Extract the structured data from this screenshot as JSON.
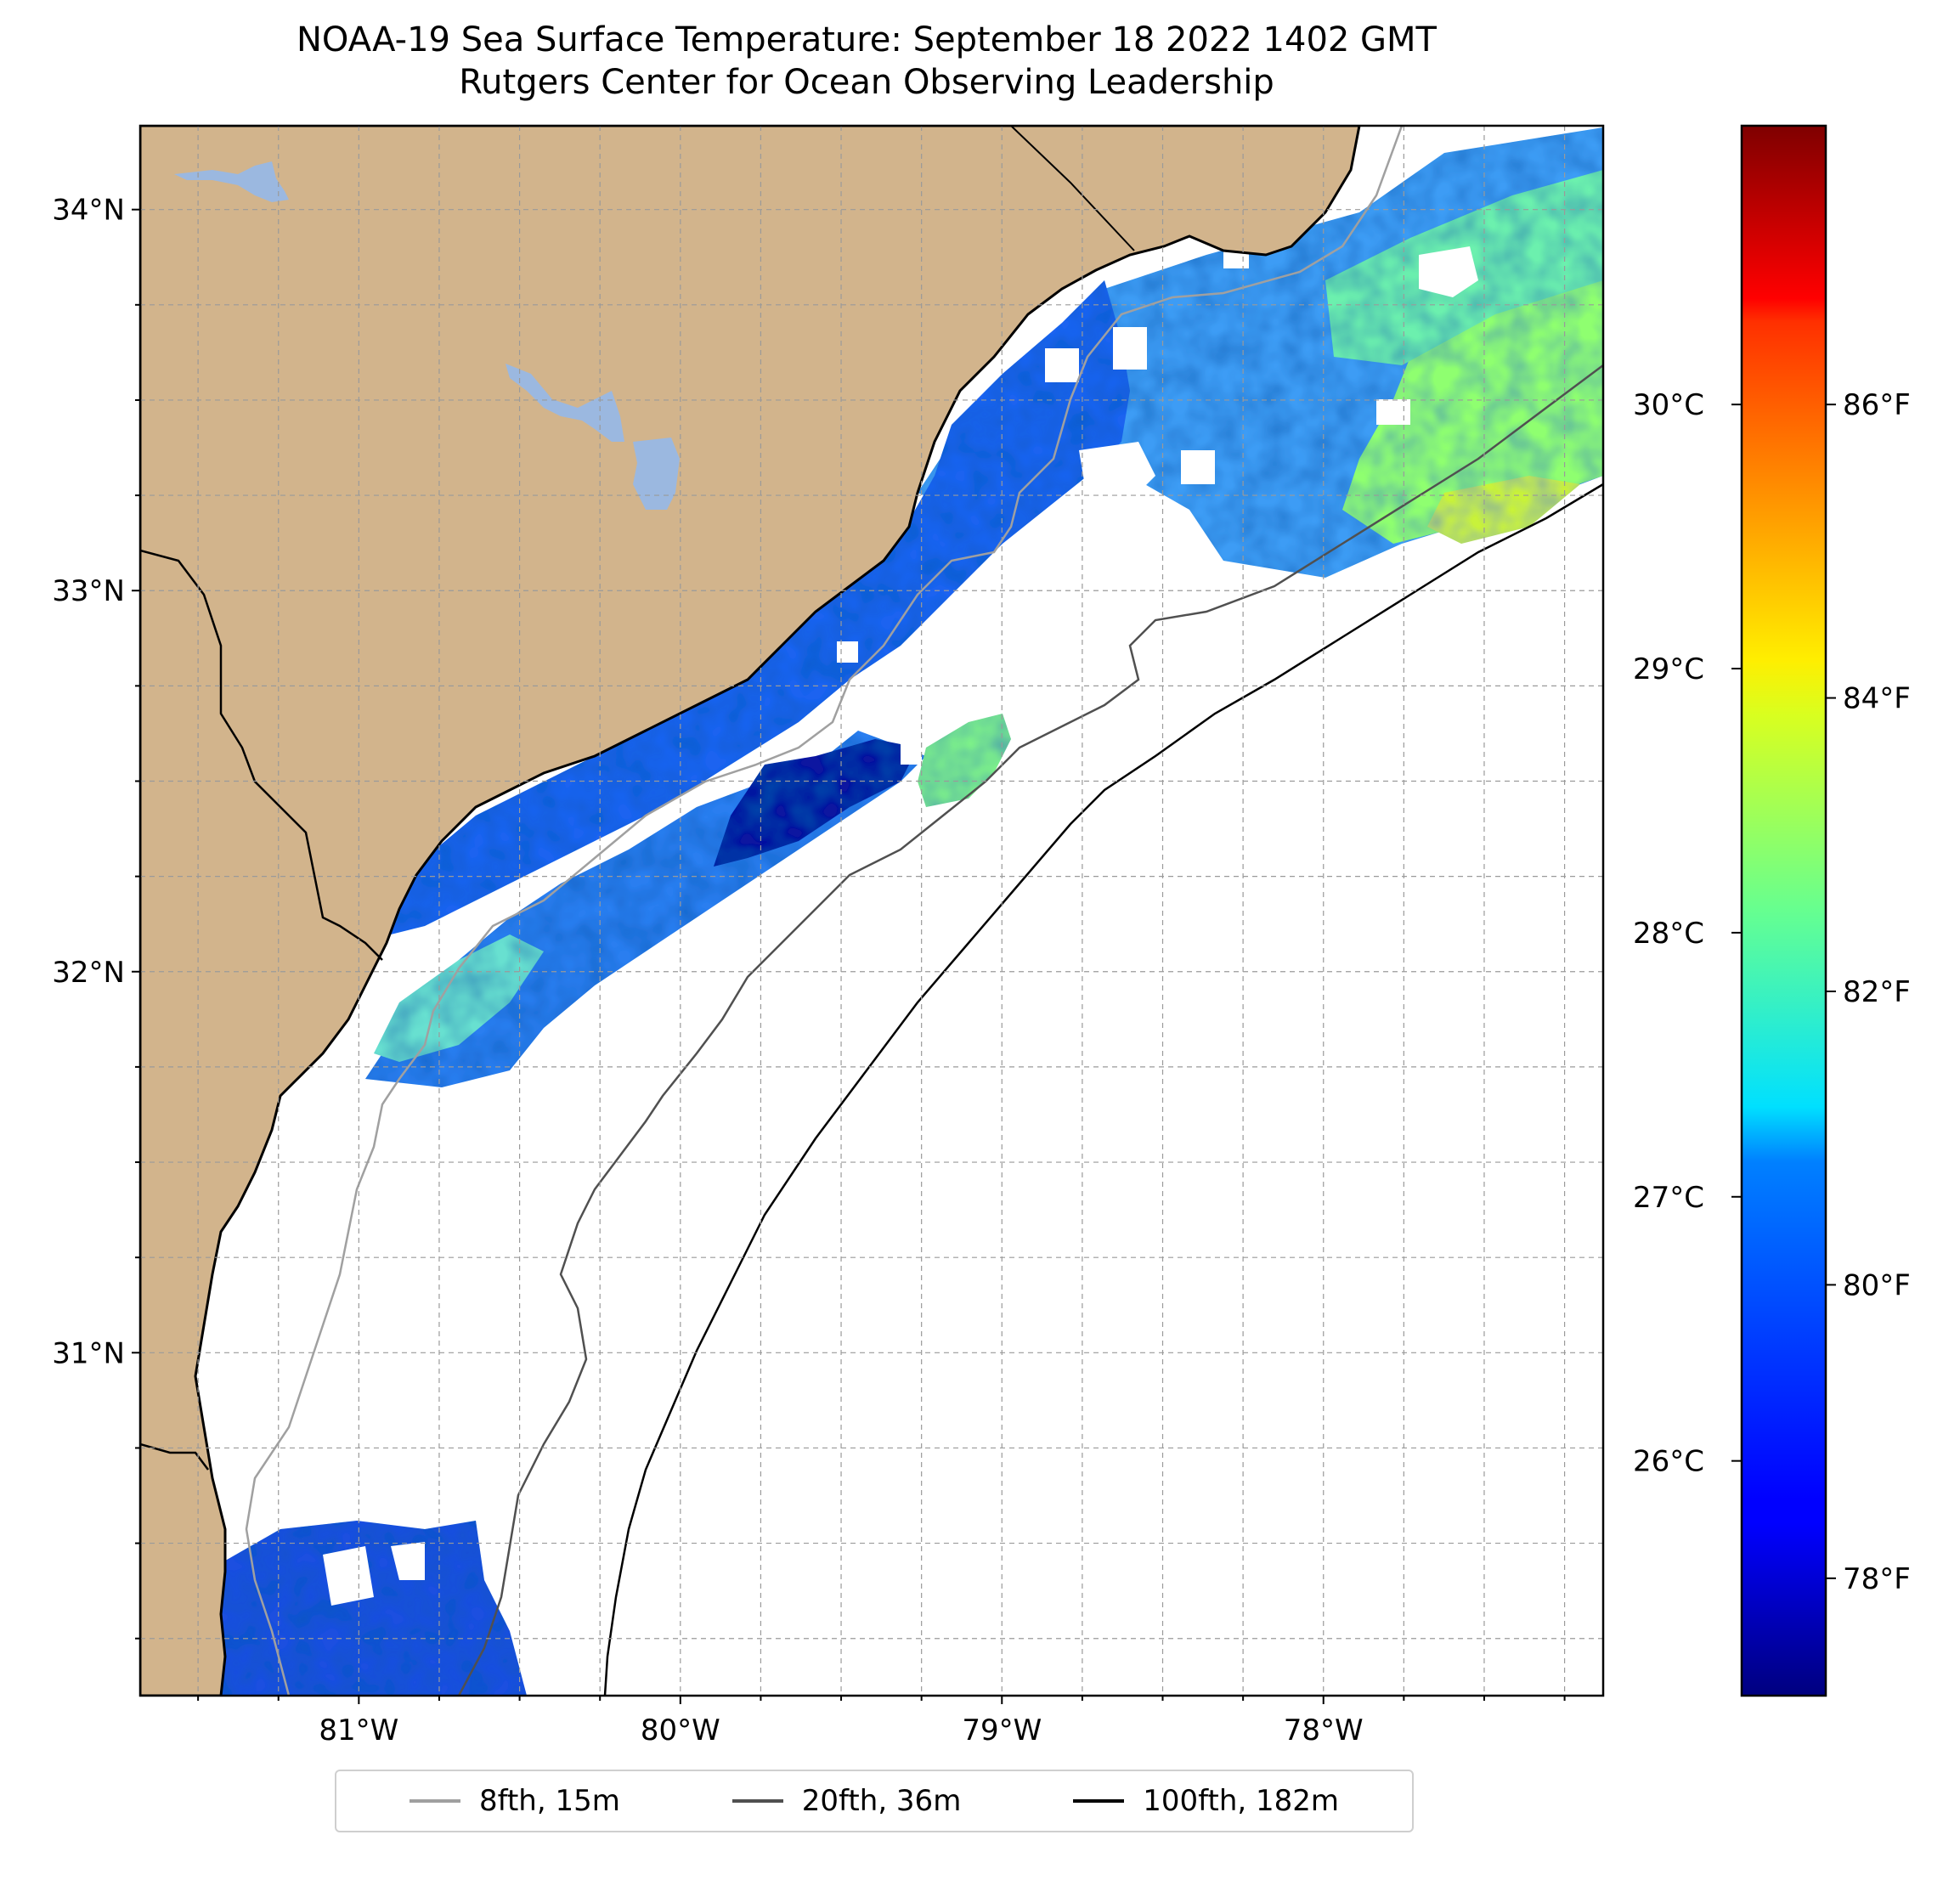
{
  "title": {
    "line1": "NOAA-19 Sea Surface Temperature: September 18 2022 1402 GMT",
    "line2": "Rutgers Center for Ocean Observing Leadership"
  },
  "map": {
    "lon_range": [
      -81.68,
      -77.13
    ],
    "lat_range": [
      30.1,
      34.22
    ],
    "lat_labels": [
      "34°N",
      "33°N",
      "32°N",
      "31°N"
    ],
    "lat_values": [
      34,
      33,
      32,
      31
    ],
    "lon_labels": [
      "81°W",
      "80°W",
      "79°W",
      "78°W"
    ],
    "lon_values": [
      -81,
      -80,
      -79,
      -78
    ],
    "grid": true,
    "colors": {
      "land": "#d2b48c",
      "water_body": "#9bb8e0",
      "ocean_no_data": "#ffffff",
      "coastline": "#000000",
      "contour_8fth": "#a0a0a0",
      "contour_20fth": "#505050",
      "contour_100fth": "#000000"
    }
  },
  "colorbar": {
    "colormap": "jet",
    "celsius_labels": [
      "30°C",
      "29°C",
      "28°C",
      "27°C",
      "26°C"
    ],
    "celsius_values": [
      30,
      29,
      28,
      27,
      26
    ],
    "fahrenheit_labels": [
      "86°F",
      "84°F",
      "82°F",
      "80°F",
      "78°F"
    ],
    "fahrenheit_values": [
      86,
      84,
      82,
      80,
      78
    ],
    "range_f": [
      77.2,
      87.9
    ]
  },
  "legend": {
    "placement": "bottom-center",
    "items": [
      {
        "label": "8fth, 15m",
        "color": "#a0a0a0"
      },
      {
        "label": "20fth, 36m",
        "color": "#505050"
      },
      {
        "label": "100fth, 182m",
        "color": "#000000"
      }
    ]
  }
}
